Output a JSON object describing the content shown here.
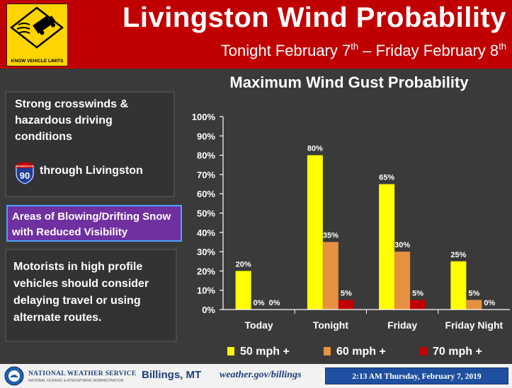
{
  "header": {
    "title": "Livingston Wind Probability",
    "subtitle_pre": "Tonight February 7",
    "subtitle_sup1": "th",
    "subtitle_mid": " – Friday February 8",
    "subtitle_sup2": "th",
    "sign_text": "KNOW VEHICLE LIMITS",
    "sign_icon": "truck-blowing-wind-icon"
  },
  "left_panel": {
    "box1_text": "Strong crosswinds & hazardous driving conditions",
    "interstate_number": "90",
    "interstate_label": "INTERSTATE",
    "route_text": "through Livingston",
    "box2_text": "Areas of Blowing/Drifting Snow with Reduced Visibility",
    "box3_text": "Motorists in high profile vehicles should consider delaying travel or using alternate routes."
  },
  "chart_data": {
    "type": "bar",
    "title": "Maximum Wind Gust Probability",
    "categories": [
      "Today",
      "Tonight",
      "Friday",
      "Friday Night"
    ],
    "series": [
      {
        "name": "50 mph +",
        "color": "#ffff00",
        "values": [
          20,
          80,
          65,
          25
        ]
      },
      {
        "name": "60 mph +",
        "color": "#e6913f",
        "values": [
          0,
          35,
          30,
          5
        ]
      },
      {
        "name": "70 mph +",
        "color": "#c00000",
        "values": [
          0,
          5,
          5,
          0
        ]
      }
    ],
    "ylim": [
      0,
      100
    ],
    "yticks": [
      "0%",
      "10%",
      "20%",
      "30%",
      "40%",
      "50%",
      "60%",
      "70%",
      "80%",
      "90%",
      "100%"
    ],
    "value_suffix": "%",
    "xlabel": "",
    "ylabel": "",
    "grid": false,
    "legend_position": "bottom"
  },
  "footer": {
    "agency": "NATIONAL WEATHER SERVICE",
    "agency_sub": "NATIONAL OCEANIC & ATMOSPHERIC ADMINISTRATION",
    "office": "Billings, MT",
    "url": "weather.gov/billings",
    "timestamp": "2:13 AM Thursday, February 7, 2019"
  }
}
